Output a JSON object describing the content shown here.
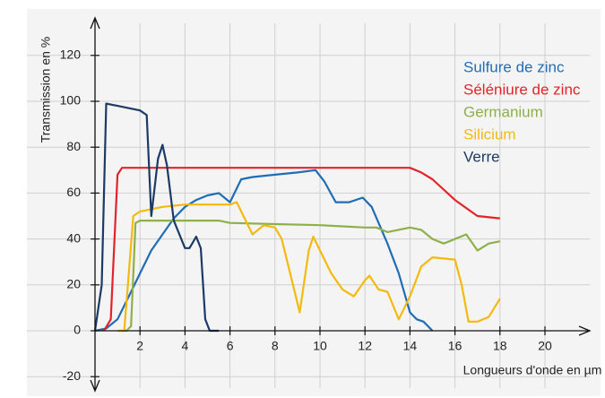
{
  "chart_data": {
    "type": "line",
    "xlabel": "Longueurs d'onde en µm",
    "ylabel": "Transmission en %",
    "xlim": [
      0,
      22
    ],
    "ylim": [
      -25,
      134
    ],
    "xticks": [
      2,
      4,
      6,
      8,
      10,
      12,
      14,
      16,
      18,
      20
    ],
    "yticks": [
      -20,
      0,
      20,
      40,
      60,
      80,
      100,
      120
    ],
    "grid": true,
    "legend": "upper right",
    "series": [
      {
        "name": "Sulfure de zinc",
        "color": "#1f6db5",
        "x": [
          0,
          0.5,
          1,
          1.5,
          2,
          2.5,
          3,
          3.5,
          4,
          4.5,
          5,
          5.5,
          6,
          6.5,
          7,
          8,
          9,
          9.8,
          10.2,
          10.7,
          11.3,
          11.9,
          12.3,
          13,
          13.5,
          14,
          14.3,
          14.6,
          15
        ],
        "values": [
          0,
          1,
          5,
          15,
          25,
          35,
          42,
          49,
          54,
          57,
          59,
          60,
          56,
          66,
          67,
          68,
          69,
          70,
          65,
          56,
          56,
          58,
          54,
          38,
          25,
          8,
          5,
          4,
          0
        ]
      },
      {
        "name": "Séléniure de zinc",
        "color": "#e3232b",
        "x": [
          0.4,
          0.7,
          1,
          1.2,
          2,
          4,
          8,
          12,
          14,
          14.5,
          15,
          16,
          17,
          18
        ],
        "values": [
          0,
          5,
          68,
          71,
          71,
          71,
          71,
          71,
          71,
          69,
          66,
          57,
          50,
          49
        ]
      },
      {
        "name": "Germanium",
        "color": "#8db04a",
        "x": [
          1.2,
          1.4,
          1.6,
          1.8,
          2,
          4,
          5.5,
          6,
          8,
          10,
          11,
          12,
          12.5,
          13,
          14,
          14.5,
          15,
          15.5,
          16,
          16.5,
          17,
          17.5,
          18
        ],
        "values": [
          0,
          0,
          2,
          47,
          48,
          48,
          48,
          47,
          46.5,
          46,
          45.5,
          45,
          45,
          43,
          45,
          44,
          40,
          38,
          40,
          42,
          35,
          38,
          39
        ]
      },
      {
        "name": "Silicium",
        "color": "#f5b90e",
        "x": [
          1,
          1.3,
          1.5,
          1.7,
          2,
          3,
          4,
          5,
          6,
          6.3,
          6.7,
          7,
          7.5,
          8,
          8.3,
          8.8,
          9.1,
          9.5,
          9.7,
          10,
          10.5,
          11,
          11.5,
          12,
          12.2,
          12.6,
          13,
          13.5,
          14,
          14.5,
          15,
          16,
          16.3,
          16.6,
          17,
          17.5,
          18
        ],
        "values": [
          0,
          0,
          25,
          50,
          52,
          54,
          55,
          55,
          55,
          56,
          48,
          42,
          46,
          45,
          40,
          20,
          8,
          35,
          41,
          35,
          25,
          18,
          15,
          22,
          24,
          18,
          17,
          5,
          15,
          28,
          32,
          31,
          20,
          4,
          4,
          6,
          14
        ]
      },
      {
        "name": "Verre",
        "color": "#1b3a66",
        "x": [
          0,
          0.3,
          0.5,
          1,
          2,
          2.3,
          2.5,
          2.8,
          3,
          3.2,
          3.5,
          4,
          4.2,
          4.5,
          4.7,
          4.9,
          5.1,
          5.5
        ],
        "values": [
          0,
          20,
          99,
          98,
          96,
          94,
          50,
          75,
          81,
          72,
          48,
          36,
          36,
          41,
          36,
          5,
          0,
          0
        ]
      }
    ]
  }
}
